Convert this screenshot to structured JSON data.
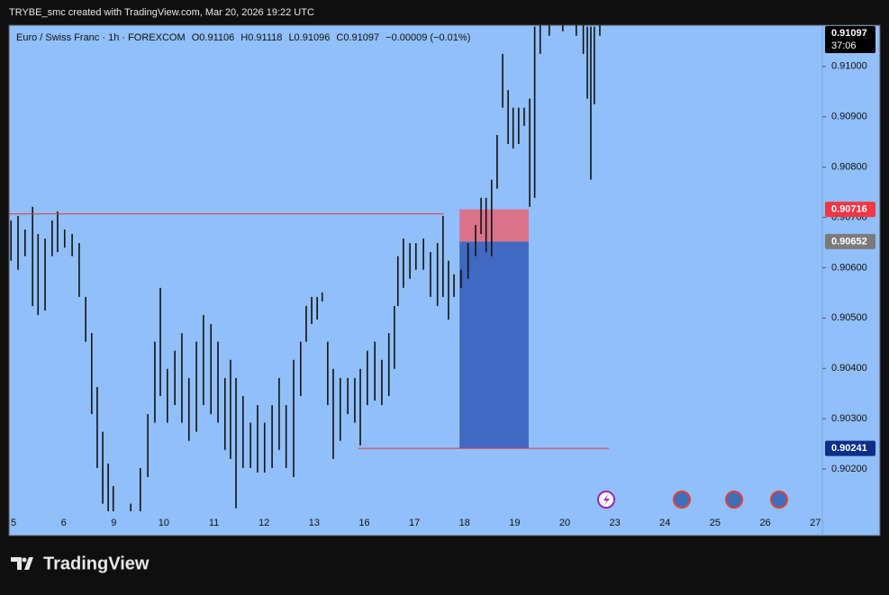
{
  "header": "TRYBE_smc created with TradingView.com, Mar 20, 2026 19:22 UTC",
  "footer": "TradingView",
  "chart_data": {
    "type": "candlestick",
    "legend": {
      "symbol": "Euro / Swiss Franc · 1h · FOREXCOM",
      "ohlc": [
        "O0.91106",
        "H0.91118",
        "L0.91096",
        "C0.91097"
      ],
      "change": "−0.00009 (−0.01%)"
    },
    "xlim": [
      -0.09,
      16.14
    ],
    "xticks": [
      {
        "value": 0,
        "label": "5"
      },
      {
        "value": 1,
        "label": "6"
      },
      {
        "value": 2,
        "label": "9"
      },
      {
        "value": 3,
        "label": "10"
      },
      {
        "value": 4,
        "label": "11"
      },
      {
        "value": 5,
        "label": "12"
      },
      {
        "value": 6,
        "label": "13"
      },
      {
        "value": 7,
        "label": "16"
      },
      {
        "value": 8,
        "label": "17"
      },
      {
        "value": 9,
        "label": "18"
      },
      {
        "value": 10,
        "label": "19"
      },
      {
        "value": 11,
        "label": "20"
      },
      {
        "value": 12,
        "label": "23"
      },
      {
        "value": 13,
        "label": "24"
      },
      {
        "value": 14,
        "label": "25"
      },
      {
        "value": 15,
        "label": "26"
      },
      {
        "value": 16,
        "label": "27"
      }
    ],
    "ylim": [
      0.90116,
      0.91082
    ],
    "yticks": [
      {
        "value": 0.902,
        "label": "0.90200"
      },
      {
        "value": 0.903,
        "label": "0.90300"
      },
      {
        "value": 0.904,
        "label": "0.90400"
      },
      {
        "value": 0.905,
        "label": "0.90500"
      },
      {
        "value": 0.906,
        "label": "0.90600"
      },
      {
        "value": 0.907,
        "label": "0.90700"
      },
      {
        "value": 0.908,
        "label": "0.90800"
      },
      {
        "value": 0.909,
        "label": "0.90900"
      },
      {
        "value": 0.91,
        "label": "0.91000"
      }
    ],
    "color": "#111111",
    "x": [
      -0.05,
      0.09,
      0.23,
      0.38,
      0.49,
      0.63,
      0.77,
      0.88,
      1.02,
      1.17,
      1.31,
      1.44,
      1.56,
      1.67,
      1.78,
      1.89,
      1.99,
      2.34,
      2.53,
      2.68,
      2.82,
      2.93,
      3.07,
      3.22,
      3.36,
      3.5,
      3.65,
      3.79,
      3.94,
      4.08,
      4.22,
      4.33,
      4.44,
      4.58,
      4.73,
      4.87,
      5.01,
      5.16,
      5.3,
      5.44,
      5.59,
      5.73,
      5.84,
      5.95,
      6.06,
      6.16,
      6.27,
      6.38,
      6.52,
      6.67,
      6.81,
      6.92,
      7.06,
      7.21,
      7.35,
      7.49,
      7.6,
      7.67,
      7.78,
      7.91,
      8.03,
      8.18,
      8.32,
      8.46,
      8.57,
      8.68,
      8.79,
      8.93,
      9.07,
      9.22,
      9.33,
      9.43,
      9.54,
      9.65,
      9.76,
      9.87,
      9.97,
      10.08,
      10.19,
      10.3,
      10.4,
      10.51,
      10.69,
      10.96,
      11.23,
      11.37,
      11.45,
      11.52,
      11.59,
      11.7
    ],
    "high": [
      0.90694,
      0.90703,
      0.90676,
      0.90721,
      0.90667,
      0.90658,
      0.90694,
      0.90712,
      0.90676,
      0.90667,
      0.90649,
      0.90542,
      0.9047,
      0.90363,
      0.90274,
      0.90211,
      0.90166,
      0.90131,
      0.90202,
      0.90309,
      0.90453,
      0.9056,
      0.90399,
      0.90435,
      0.9047,
      0.90381,
      0.90453,
      0.90506,
      0.90488,
      0.90453,
      0.90381,
      0.90417,
      0.90381,
      0.90345,
      0.90292,
      0.90327,
      0.90292,
      0.90327,
      0.90381,
      0.90327,
      0.90417,
      0.90453,
      0.90524,
      0.90542,
      0.90542,
      0.90551,
      0.90453,
      0.90399,
      0.90381,
      0.90381,
      0.90381,
      0.90399,
      0.90435,
      0.90453,
      0.90417,
      0.9047,
      0.90524,
      0.90623,
      0.90658,
      0.90649,
      0.90649,
      0.90658,
      0.90631,
      0.90649,
      0.90703,
      0.90614,
      0.90587,
      0.90596,
      0.90649,
      0.90685,
      0.90739,
      0.90739,
      0.90775,
      0.90864,
      0.91025,
      0.90953,
      0.90918,
      0.90918,
      0.90918,
      0.90936,
      0.91079,
      0.91097,
      0.91097,
      0.91097,
      0.91097,
      0.91097,
      0.91079,
      0.91079,
      0.91079,
      0.91097
    ],
    "low": [
      0.90614,
      0.90596,
      0.90623,
      0.90524,
      0.90506,
      0.90515,
      0.90623,
      0.90631,
      0.9064,
      0.90623,
      0.90542,
      0.90453,
      0.90309,
      0.90202,
      0.90131,
      0.90116,
      0.90116,
      0.90116,
      0.90116,
      0.90184,
      0.90292,
      0.90345,
      0.90292,
      0.90327,
      0.90292,
      0.90256,
      0.90274,
      0.90327,
      0.90309,
      0.90292,
      0.90238,
      0.9022,
      0.90122,
      0.90202,
      0.90202,
      0.90193,
      0.90193,
      0.90202,
      0.90238,
      0.90202,
      0.90184,
      0.90345,
      0.90453,
      0.90488,
      0.90497,
      0.90533,
      0.90327,
      0.9022,
      0.90256,
      0.90309,
      0.90292,
      0.90247,
      0.90327,
      0.90336,
      0.90327,
      0.90345,
      0.90399,
      0.90524,
      0.9056,
      0.90578,
      0.90596,
      0.90596,
      0.90542,
      0.90524,
      0.90542,
      0.90497,
      0.90542,
      0.9056,
      0.90578,
      0.90623,
      0.90667,
      0.90631,
      0.90623,
      0.90757,
      0.90918,
      0.90846,
      0.90837,
      0.90846,
      0.90882,
      0.90721,
      0.90739,
      0.91025,
      0.91061,
      0.9107,
      0.91061,
      0.91025,
      0.90936,
      0.90775,
      0.90925,
      0.91061
    ],
    "lines": [
      {
        "color": "#e03a3a",
        "value": 0.90707,
        "x": [
          -0.09,
          8.59
        ]
      },
      {
        "color": "#e03a3a",
        "value": 0.90241,
        "x": [
          6.88,
          11.88
        ]
      }
    ],
    "position": {
      "stop": 0.90716,
      "entry": 0.90652,
      "target": 0.90241,
      "x": [
        8.9,
        10.28
      ],
      "stop_color": "#d9738a",
      "target_color": "#4169c2"
    },
    "last_price": 0.91097,
    "countdown": "37:06"
  }
}
